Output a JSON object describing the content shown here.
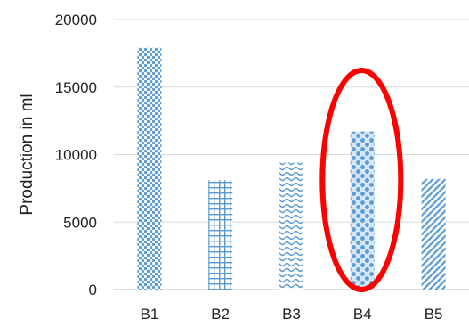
{
  "chart_data": {
    "type": "bar",
    "title": "",
    "xlabel": "",
    "ylabel": "Production in ml",
    "categories": [
      "B1",
      "B2",
      "B3",
      "B4",
      "B5"
    ],
    "values": [
      17900,
      8100,
      9400,
      11700,
      8200
    ],
    "patterns": [
      "dots",
      "grid",
      "waves",
      "large-dots",
      "diagonal-stripes"
    ],
    "yticks": [
      0,
      5000,
      10000,
      15000,
      20000
    ],
    "ylim": [
      0,
      20000
    ],
    "grid": true,
    "legend": "none",
    "highlight": {
      "category": "B4",
      "shape": "ellipse",
      "color": "#ff0000"
    }
  },
  "colors": {
    "bar": "#5b9bd5",
    "grid": "#d9d9d9",
    "axis": "#bfbfbf",
    "highlight": "#ff0000"
  }
}
